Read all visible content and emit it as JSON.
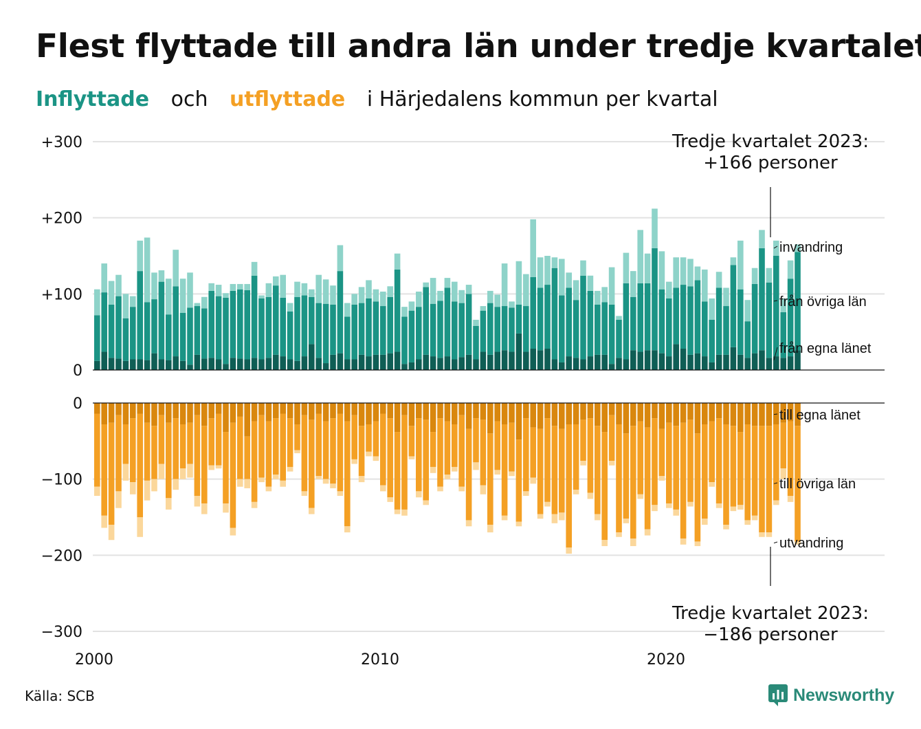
{
  "title": "Flest flyttade till andra län under tredje kvartalet",
  "subtitle": {
    "inflyttade": "Inflyttade",
    "och": "och",
    "utflyttade": "utflyttade",
    "rest": "i Härjedalens kommun per kvartal"
  },
  "source": "Källa: SCB",
  "brand": "Newsworthy",
  "colors": {
    "in_egna": "#0f5e55",
    "in_ovriga": "#1b9485",
    "in_invandring": "#8ed3c9",
    "out_egna": "#d9870e",
    "out_ovriga": "#f4a024",
    "out_utvandring": "#fbd79b"
  },
  "annotations": {
    "top_line1": "Tredje kvartalet 2023:",
    "top_line2": "+166 personer",
    "bottom_line1": "Tredje kvartalet 2023:",
    "bottom_line2": "−186 personer"
  },
  "chart_data": {
    "type": "bar",
    "stacked": true,
    "x_start": "2000 Q1",
    "x_end": "2023 Q3",
    "x_ticks": [
      "2000",
      "2010",
      "2020"
    ],
    "panels": [
      {
        "name": "inflyttade",
        "ylim": [
          0,
          300
        ],
        "y_ticks": [
          "+300",
          "+200",
          "+100",
          "0"
        ],
        "series_labels": [
          "invandring",
          "från övriga län",
          "från egna länet"
        ],
        "series": [
          {
            "name": "från egna länet",
            "values": [
              12,
              24,
              16,
              15,
              12,
              14,
              14,
              13,
              22,
              14,
              13,
              18,
              12,
              7,
              20,
              15,
              16,
              14,
              8,
              16,
              15,
              14,
              16,
              14,
              16,
              20,
              18,
              14,
              12,
              18,
              34,
              16,
              9,
              20,
              22,
              14,
              14,
              20,
              18,
              20,
              20,
              22,
              24,
              8,
              10,
              14,
              20,
              18,
              16,
              18,
              14,
              17,
              20,
              14,
              24,
              20,
              24,
              26,
              24,
              48,
              24,
              28,
              26,
              28,
              14,
              10,
              18,
              16,
              14,
              18,
              20,
              20,
              8,
              16,
              14,
              26,
              24,
              26,
              26,
              22,
              18,
              34,
              28,
              20,
              22,
              18,
              10,
              20,
              20,
              30,
              20,
              16,
              22,
              26,
              16,
              18,
              16,
              18,
              26
            ]
          },
          {
            "name": "från övriga län",
            "values": [
              60,
              78,
              70,
              82,
              56,
              69,
              116,
              76,
              71,
              102,
              60,
              92,
              63,
              75,
              64,
              66,
              88,
              83,
              87,
              88,
              91,
              91,
              108,
              80,
              80,
              91,
              77,
              63,
              84,
              80,
              62,
              72,
              78,
              66,
              108,
              56,
              72,
              68,
              76,
              70,
              64,
              74,
              108,
              62,
              68,
              69,
              89,
              69,
              75,
              90,
              76,
              71,
              80,
              44,
              54,
              68,
              59,
              58,
              58,
              38,
              60,
              94,
              82,
              84,
              120,
              88,
              90,
              76,
              110,
              86,
              66,
              69,
              78,
              50,
              100,
              70,
              90,
              88,
              134,
              84,
              76,
              74,
              84,
              90,
              96,
              72,
              56,
              88,
              64,
              108,
              86,
              48,
              91,
              134,
              99,
              132,
              60,
              102,
              129
            ]
          },
          {
            "name": "invandring",
            "values": [
              34,
              38,
              31,
              28,
              32,
              14,
              40,
              85,
              35,
              15,
              47,
              48,
              45,
              46,
              4,
              15,
              10,
              15,
              6,
              9,
              7,
              8,
              18,
              4,
              18,
              12,
              30,
              11,
              20,
              16,
              10,
              37,
              32,
              25,
              34,
              18,
              14,
              21,
              24,
              16,
              19,
              14,
              21,
              13,
              12,
              20,
              6,
              34,
              13,
              13,
              26,
              17,
              12,
              8,
              6,
              16,
              16,
              56,
              8,
              57,
              42,
              76,
              40,
              38,
              14,
              48,
              20,
              26,
              20,
              20,
              18,
              20,
              49,
              5,
              40,
              34,
              70,
              39,
              52,
              50,
              22,
              40,
              36,
              36,
              18,
              42,
              28,
              21,
              24,
              10,
              64,
              28,
              21,
              24,
              19,
              20,
              18,
              24,
              10
            ]
          }
        ]
      },
      {
        "name": "utflyttade",
        "ylim": [
          -300,
          0
        ],
        "y_ticks": [
          "0",
          "−100",
          "−200",
          "−300"
        ],
        "series_labels": [
          "till egna länet",
          "till övriga län",
          "utvandring"
        ],
        "series": [
          {
            "name": "till egna länet",
            "values": [
              -14,
              -28,
              -26,
              -16,
              -28,
              -20,
              -14,
              -26,
              -30,
              -16,
              -26,
              -20,
              -28,
              -26,
              -16,
              -30,
              -20,
              -14,
              -38,
              -26,
              -18,
              -44,
              -24,
              -16,
              -24,
              -20,
              -14,
              -20,
              -28,
              -16,
              -22,
              -14,
              -24,
              -20,
              -14,
              -24,
              -16,
              -30,
              -28,
              -24,
              -14,
              -20,
              -38,
              -16,
              -30,
              -20,
              -22,
              -38,
              -20,
              -24,
              -28,
              -16,
              -34,
              -20,
              -22,
              -40,
              -24,
              -28,
              -26,
              -48,
              -20,
              -32,
              -34,
              -20,
              -30,
              -34,
              -28,
              -28,
              -22,
              -20,
              -30,
              -38,
              -16,
              -28,
              -40,
              -30,
              -24,
              -32,
              -20,
              -34,
              -26,
              -30,
              -26,
              -22,
              -40,
              -28,
              -24,
              -20,
              -28,
              -30,
              -38,
              -28,
              -30,
              -30,
              -30,
              -28,
              -26,
              -24,
              -30
            ]
          },
          {
            "name": "till övriga län",
            "values": [
              -96,
              -120,
              -134,
              -100,
              -52,
              -84,
              -136,
              -76,
              -70,
              -64,
              -99,
              -80,
              -58,
              -54,
              -106,
              -102,
              -62,
              -68,
              -94,
              -138,
              -82,
              -56,
              -106,
              -82,
              -86,
              -74,
              -88,
              -64,
              -34,
              -100,
              -116,
              -82,
              -76,
              -86,
              -102,
              -138,
              -58,
              -66,
              -36,
              -46,
              -94,
              -104,
              -102,
              -124,
              -40,
              -96,
              -106,
              -46,
              -90,
              -70,
              -56,
              -94,
              -120,
              -58,
              -86,
              -120,
              -64,
              -120,
              -64,
              -108,
              -96,
              -66,
              -112,
              -110,
              -116,
              -110,
              -162,
              -86,
              -54,
              -98,
              -116,
              -142,
              -60,
              -142,
              -112,
              -148,
              -96,
              -134,
              -114,
              -62,
              -106,
              -110,
              -152,
              -108,
              -142,
              -124,
              -80,
              -112,
              -132,
              -106,
              -96,
              -126,
              -118,
              -140,
              -140,
              -100,
              -60,
              -98,
              -152
            ]
          },
          {
            "name": "utvandring",
            "values": [
              -12,
              -16,
              -20,
              -22,
              -22,
              -16,
              -26,
              -26,
              -16,
              -20,
              -15,
              -14,
              -14,
              -18,
              -14,
              -14,
              -6,
              -4,
              -12,
              -10,
              -10,
              -12,
              -8,
              -6,
              -6,
              -6,
              -8,
              -6,
              -4,
              -6,
              -8,
              -4,
              -6,
              -6,
              -6,
              -8,
              -6,
              -8,
              -6,
              -6,
              -8,
              -6,
              -6,
              -8,
              -4,
              -8,
              -6,
              -8,
              -6,
              -6,
              -6,
              -6,
              -8,
              -10,
              -12,
              -10,
              -6,
              -6,
              -6,
              -6,
              -6,
              -8,
              -6,
              -6,
              -12,
              -10,
              -8,
              -6,
              -6,
              -8,
              -8,
              -8,
              -6,
              -6,
              -6,
              -10,
              -6,
              -8,
              -8,
              -6,
              -6,
              -8,
              -8,
              -6,
              -6,
              -8,
              -6,
              -6,
              -6,
              -6,
              -6,
              -6,
              -6,
              -6,
              -6,
              -6,
              -14,
              -8,
              -4
            ]
          }
        ]
      }
    ],
    "xlabel": "",
    "ylabel": "",
    "grid": true,
    "legend": "right-side labels"
  }
}
